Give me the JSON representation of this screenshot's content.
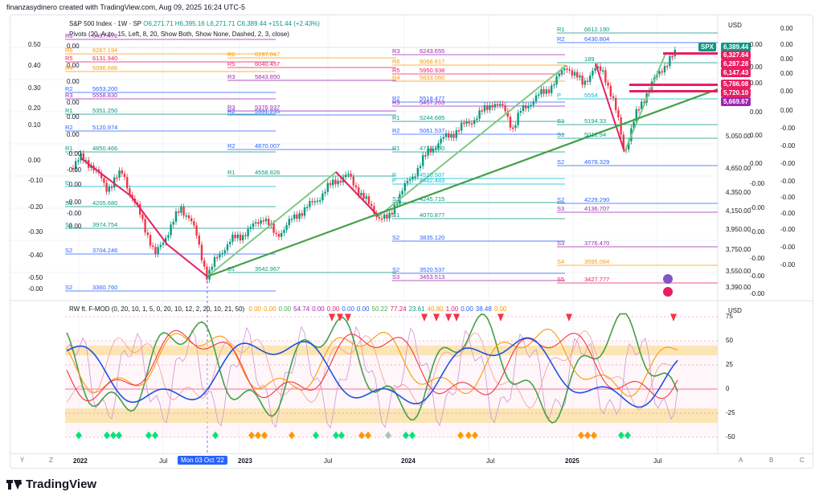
{
  "creator_line": "finanzasydinero created with TradingView.com, Aug 09, 2025 16:24 UTC-5",
  "legend": {
    "symbol": "S&P 500 Index · 1W · SP",
    "ohlc": "O6,271.71 H6,395.16 L6,271.71 C6,389.44 +151.44 (+2.43%)",
    "pivots": "Pivots (20, Auto, 15, Left, 8, 20, Show Both, Show None, Dashed, 2, 3, close)"
  },
  "currency": "USD",
  "price_axis": {
    "labels": [
      "5,050.00",
      "4,650.00",
      "4,350.00",
      "4,150.00",
      "3,950.00",
      "3,750.00",
      "3,550.00",
      "3,390.00"
    ],
    "tags": [
      {
        "label": "SPX",
        "value": "6,389.44",
        "color": "#089981"
      },
      {
        "value": "6,327.64",
        "color": "#e91e63"
      },
      {
        "value": "6,287.28",
        "color": "#e91e63"
      },
      {
        "value": "6,147.43",
        "color": "#e91e63"
      },
      {
        "value": "5,786.08",
        "color": "#e91e63"
      },
      {
        "value": "5,720.10",
        "color": "#e91e63"
      },
      {
        "value": "5,669.67",
        "color": "#9c27b0"
      }
    ]
  },
  "overlay_scale_a": {
    "labels": [
      "0.50",
      "0.40",
      "0.30",
      "0.20",
      "0.10",
      "0.00",
      "-0.10",
      "-0.20",
      "-0.30",
      "-0.40",
      "-0.50",
      "-0.00"
    ]
  },
  "overlay_scale_b": {
    "left_labels": [
      "0.00",
      "0.00",
      "0.00",
      "0.00",
      "0.00",
      "0.00",
      "-0.00",
      "-0.00",
      "-0.00",
      "-0.00",
      "-0.00",
      "-0.00"
    ],
    "right_labels": [
      "0.00",
      "0.00",
      "0.00",
      "0.00",
      "0.00",
      "0.00",
      "-0.00",
      "-0.00",
      "-0.00",
      "-0.00",
      "-0.00",
      "-0.00",
      "-0.00",
      "-0.00",
      "-0.00"
    ]
  },
  "pivot_levels": [
    {
      "label": "R3",
      "value": "6497.470",
      "color": "#9c27b0"
    },
    {
      "label": "R6",
      "value": "6267.194",
      "color": "#ff9800"
    },
    {
      "label": "R5",
      "value": "6131.940",
      "color": "#e91e63"
    },
    {
      "label": "R4",
      "value": "5996.686",
      "color": "#ff9800"
    },
    {
      "label": "R2",
      "value": "5653.200",
      "color": "#2962ff"
    },
    {
      "label": "R3",
      "value": "5558.830",
      "color": "#9c27b0"
    },
    {
      "label": "R1",
      "value": "5351.250",
      "color": "#089981"
    },
    {
      "label": "R2",
      "value": "5120.974",
      "color": "#2962ff"
    },
    {
      "label": "R1",
      "value": "4850.466",
      "color": "#089981"
    },
    {
      "label": "P",
      "value": "",
      "color": "#00bcd4"
    },
    {
      "label": "S1",
      "value": "4205.680",
      "color": "#089981"
    },
    {
      "label": "S1",
      "value": "3974.754",
      "color": "#089981"
    },
    {
      "label": "S2",
      "value": "3704.246",
      "color": "#2962ff"
    },
    {
      "label": "S2",
      "value": "3360.760",
      "color": "#2962ff"
    },
    {
      "label": "R6",
      "value": "6197.047",
      "color": "#ff9800"
    },
    {
      "label": "R5",
      "value": "6040.457",
      "color": "#e91e63"
    },
    {
      "label": "R3",
      "value": "5843.850",
      "color": "#9c27b0"
    },
    {
      "label": "R3",
      "value": "5376.937",
      "color": "#9c27b0"
    },
    {
      "label": "R2",
      "value": "5331.235",
      "color": "#2962ff"
    },
    {
      "label": "R2",
      "value": "4870.007",
      "color": "#2962ff"
    },
    {
      "label": "R1",
      "value": "4558.826",
      "color": "#089981"
    },
    {
      "label": "S1",
      "value": "3542.967",
      "color": "#089981"
    },
    {
      "label": "R3",
      "value": "6243.655",
      "color": "#9c27b0"
    },
    {
      "label": "R6",
      "value": "6068.817",
      "color": "#ff9800"
    },
    {
      "label": "R5",
      "value": "5950.938",
      "color": "#e91e63"
    },
    {
      "label": "R4",
      "value": "5833.060",
      "color": "#ff9800"
    },
    {
      "label": "R2",
      "value": "5518.477",
      "color": "#2962ff"
    },
    {
      "label": "R3",
      "value": "5457.263",
      "color": "#9c27b0"
    },
    {
      "label": "R1",
      "value": "5244.685",
      "color": "#089981"
    },
    {
      "label": "R2",
      "value": "5061.537",
      "color": "#2962ff"
    },
    {
      "label": "R1",
      "value": "4734.090",
      "color": "#089981"
    },
    {
      "label": "P",
      "value": "4510.507",
      "color": "#00bcd4"
    },
    {
      "label": "P",
      "value": "4462.483",
      "color": "#00bcd4"
    },
    {
      "label": "S1",
      "value": "4245.715",
      "color": "#089981"
    },
    {
      "label": "S1",
      "value": "4070.877",
      "color": "#089981"
    },
    {
      "label": "S2",
      "value": "3835.120",
      "color": "#2962ff"
    },
    {
      "label": "S2",
      "value": "3520.537",
      "color": "#2962ff"
    },
    {
      "label": "S3",
      "value": "3453.513",
      "color": "#9c27b0"
    },
    {
      "label": "R1",
      "value": "6612.190",
      "color": "#089981"
    },
    {
      "label": "R2",
      "value": "6430.804",
      "color": "#2962ff"
    },
    {
      "label": "",
      "value": "189",
      "color": "#089981"
    },
    {
      "label": "P",
      "value": "5554",
      "color": "#00bcd4"
    },
    {
      "label": "S1",
      "value": "5194.33",
      "color": "#089981"
    },
    {
      "label": "S1",
      "value": "5012.94",
      "color": "#089981"
    },
    {
      "label": "S2",
      "value": "4678.329",
      "color": "#2962ff"
    },
    {
      "label": "S2",
      "value": "4229.290",
      "color": "#2962ff"
    },
    {
      "label": "S3",
      "value": "4136.707",
      "color": "#9c27b0"
    },
    {
      "label": "S3",
      "value": "3776.470",
      "color": "#9c27b0"
    },
    {
      "label": "S4",
      "value": "3595.084",
      "color": "#ff9800"
    },
    {
      "label": "S5",
      "value": "3427.777",
      "color": "#e91e63"
    }
  ],
  "oscillator": {
    "legend_name": "RW ft. F-MOD (0, 20, 10, 1, 5, 0, 20, 10, 12, 2, 20, 10, 21, 50)",
    "legend_values": [
      {
        "v": "0.00",
        "c": "#ff9800"
      },
      {
        "v": "0.00",
        "c": "#ff9800"
      },
      {
        "v": "0.00",
        "c": "#4caf50"
      },
      {
        "v": "54.74",
        "c": "#9c27b0"
      },
      {
        "v": "0.00",
        "c": "#9c27b0"
      },
      {
        "v": "0.00",
        "c": "#e91e63"
      },
      {
        "v": "0.00",
        "c": "#2962ff"
      },
      {
        "v": "0.00",
        "c": "#2962ff"
      },
      {
        "v": "50.22",
        "c": "#4caf50"
      },
      {
        "v": "77.24",
        "c": "#e91e63"
      },
      {
        "v": "23.61",
        "c": "#089981"
      },
      {
        "v": "40.80",
        "c": "#ff9800"
      },
      {
        "v": "1.00",
        "c": "#e91e63"
      },
      {
        "v": "0.00",
        "c": "#2962ff"
      },
      {
        "v": "38.48",
        "c": "#2962ff"
      },
      {
        "v": "0.00",
        "c": "#ff9800"
      }
    ],
    "currency": "USD",
    "axis": [
      "75",
      "50",
      "25",
      "0",
      "-25",
      "-50"
    ]
  },
  "time_axis": {
    "labels": [
      {
        "t": "2022",
        "bold": true
      },
      {
        "t": "Jul",
        "bold": false
      },
      {
        "t": "2023",
        "bold": true
      },
      {
        "t": "Jul",
        "bold": false
      },
      {
        "t": "2024",
        "bold": true
      },
      {
        "t": "Jul",
        "bold": false
      },
      {
        "t": "2025",
        "bold": true
      },
      {
        "t": "Jul",
        "bold": false
      }
    ],
    "cursor": "Mon 03 Oct '22",
    "corner_left": [
      "Y",
      "Z"
    ],
    "corner_right": [
      "A",
      "B",
      "C"
    ]
  },
  "brand": "TradingView"
}
